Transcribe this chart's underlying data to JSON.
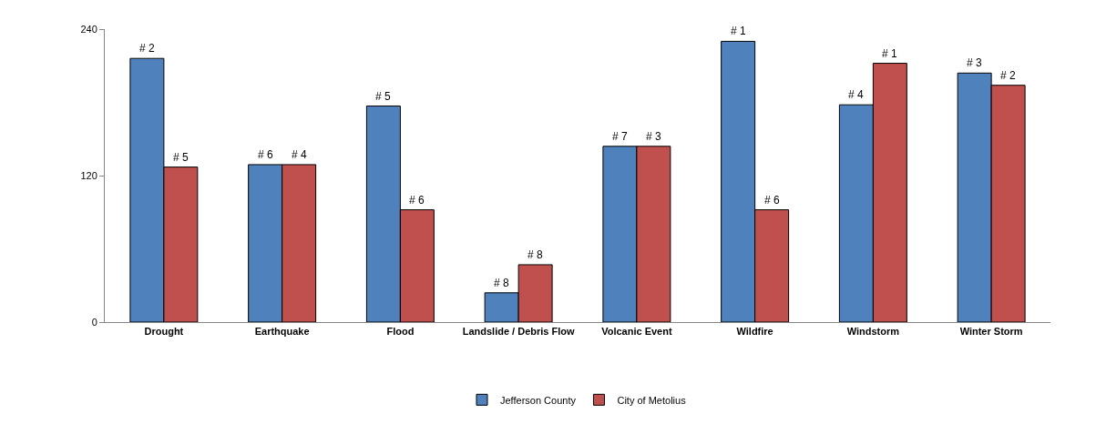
{
  "chart_data": {
    "type": "bar",
    "categories": [
      "Drought",
      "Earthquake",
      "Flood",
      "Landslide / Debris Flow",
      "Volcanic Event",
      "Wildfire",
      "Windstorm",
      "Winter Storm"
    ],
    "series": [
      {
        "name": "Jefferson County",
        "color": "#4f81bd",
        "values": [
          216,
          129,
          177,
          24,
          144,
          230,
          178,
          204
        ]
      },
      {
        "name": "City of Metolius",
        "color": "#c0504d",
        "values": [
          127,
          129,
          92,
          47,
          144,
          92,
          212,
          194
        ]
      }
    ],
    "annotations": [
      {
        "text": "# 2",
        "x": "Drought",
        "y": 216
      },
      {
        "text": "# 5",
        "x": "Drought",
        "y": 127
      },
      {
        "text": "# 6",
        "x": "Earthquake",
        "y": 129
      },
      {
        "text": "# 4",
        "x": "Earthquake",
        "y": 129
      },
      {
        "text": "# 5",
        "x": "Flood",
        "y": 177
      },
      {
        "text": "# 6",
        "x": "Flood",
        "y": 92
      },
      {
        "text": "# 8",
        "x": "Landslide / Debris Flow",
        "y": 24
      },
      {
        "text": "# 8",
        "x": "Landslide / Debris Flow",
        "y": 47
      },
      {
        "text": "# 7",
        "x": "Volcanic Event",
        "y": 144
      },
      {
        "text": "# 3",
        "x": "Volcanic Event",
        "y": 144
      },
      {
        "text": "# 1",
        "x": "Wildfire",
        "y": 230
      },
      {
        "text": "# 6",
        "x": "Wildfire",
        "y": 92
      },
      {
        "text": "# 4",
        "x": "Windstorm",
        "y": 178
      },
      {
        "text": "# 1",
        "x": "Windstorm",
        "y": 212
      },
      {
        "text": "# 3",
        "x": "Winter Storm",
        "y": 204
      },
      {
        "text": "# 2",
        "x": "Winter Storm",
        "y": 194
      }
    ],
    "ylim": [
      0,
      240
    ],
    "yticks": [
      0,
      120,
      240
    ],
    "grid": false,
    "legend": "bottom"
  }
}
